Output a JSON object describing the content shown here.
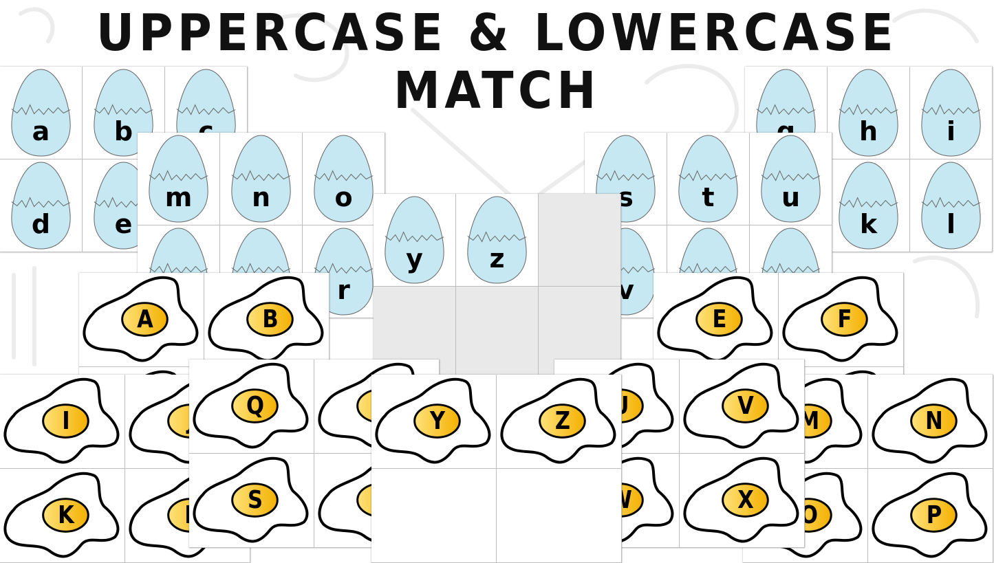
{
  "title": {
    "line1": "UPPERCASE & LOWERCASE",
    "line2": "MATCH"
  },
  "colors": {
    "egg_fill": "#c6e8f2",
    "yolk_light": "#ffe27a",
    "yolk_dark": "#f4b000",
    "blank_card": "#e9e9e9"
  },
  "card_types": {
    "lowercase": "cracked-blue-egg",
    "uppercase": "fried-egg"
  },
  "sheets": [
    {
      "id": "lower-a-f",
      "type": "lowercase",
      "letters": [
        "a",
        "b",
        "c",
        "d",
        "e",
        null
      ]
    },
    {
      "id": "lower-g-l",
      "type": "lowercase",
      "letters": [
        "g",
        "h",
        "i",
        null,
        "k",
        "l"
      ]
    },
    {
      "id": "lower-m-r",
      "type": "lowercase",
      "letters": [
        "m",
        "n",
        "o",
        null,
        null,
        "r"
      ]
    },
    {
      "id": "lower-s-x",
      "type": "lowercase",
      "letters": [
        "s",
        "t",
        "u",
        "v",
        null,
        null
      ]
    },
    {
      "id": "lower-y-z",
      "type": "lowercase",
      "letters": [
        "y",
        "z",
        "",
        "",
        "",
        ""
      ]
    },
    {
      "id": "upper-a-d",
      "type": "uppercase",
      "letters": [
        "A",
        "B",
        null,
        null
      ]
    },
    {
      "id": "upper-e-h",
      "type": "uppercase",
      "letters": [
        "E",
        "F",
        null,
        null
      ]
    },
    {
      "id": "upper-i-l",
      "type": "uppercase",
      "letters": [
        "I",
        "J",
        "K",
        "L"
      ]
    },
    {
      "id": "upper-m-p",
      "type": "uppercase",
      "letters": [
        "M",
        "N",
        "O",
        "P"
      ]
    },
    {
      "id": "upper-q-t",
      "type": "uppercase",
      "letters": [
        "Q",
        "R",
        "S",
        "T"
      ]
    },
    {
      "id": "upper-u-x",
      "type": "uppercase",
      "letters": [
        "U",
        "V",
        "W",
        "X"
      ]
    },
    {
      "id": "upper-y-z",
      "type": "uppercase",
      "letters": [
        "Y",
        "Z",
        "",
        ""
      ]
    }
  ]
}
